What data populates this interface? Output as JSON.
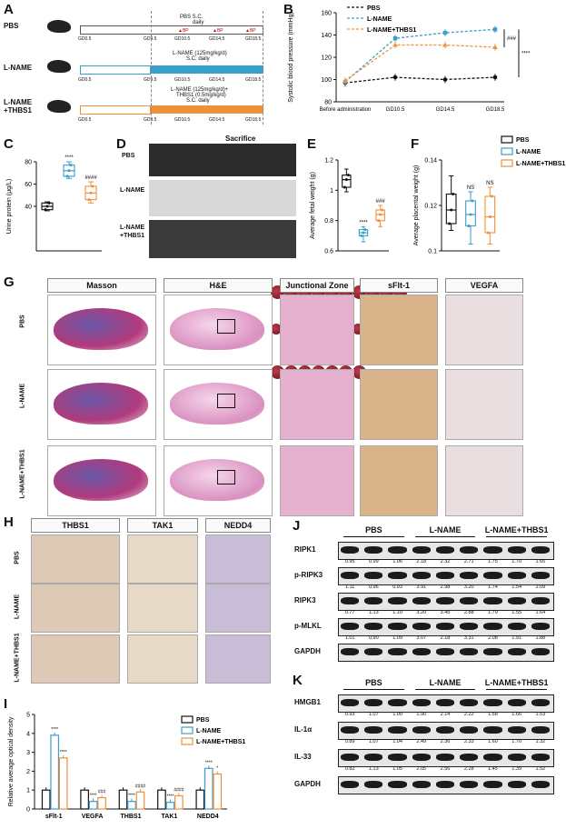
{
  "panels": {
    "A": "A",
    "B": "B",
    "C": "C",
    "D": "D",
    "E": "E",
    "F": "F",
    "G": "G",
    "H": "H",
    "I": "I",
    "J": "J",
    "K": "K"
  },
  "panelA": {
    "groups": [
      {
        "name": "PBS",
        "bar": "PBS S.C.",
        "bar2": "daily"
      },
      {
        "name": "L-NAME",
        "bar": "L-NAME (125mg/kg/d)",
        "bar2": "S.C. daily"
      },
      {
        "name": "L-NAME\n+THBS1",
        "bar": "L-NAME (125mg/kg/d)+",
        "bar2": "THBS1 (0.5mg/kg/d)",
        "bar3": "S.C. daily"
      }
    ],
    "timepoints": [
      "GD0.5",
      "GD9.5",
      "GD10.5",
      "GD14.5",
      "GD18.5"
    ],
    "bp": "▲BP"
  },
  "chart_data": [
    {
      "id": "B",
      "type": "line",
      "ylabel": "Systolic blood pressure (mmHg)",
      "categories": [
        "Before administration",
        "GD10.5",
        "GD14.5",
        "GD18.5"
      ],
      "ylim": [
        80,
        160
      ],
      "yticks": [
        80,
        100,
        120,
        140,
        160
      ],
      "series": [
        {
          "name": "PBS",
          "values": [
            97,
            102,
            100,
            102
          ],
          "color": "#111111"
        },
        {
          "name": "L-NAME",
          "values": [
            98,
            137,
            142,
            145
          ],
          "color": "#3a9fc8"
        },
        {
          "name": "L-NAME+THBS1",
          "values": [
            99,
            131,
            131,
            129
          ],
          "color": "#f0903a"
        }
      ],
      "annotations": [
        "###",
        "****"
      ]
    },
    {
      "id": "C",
      "type": "box",
      "ylabel": "Urine protein (μg/L)",
      "ylim": [
        0,
        80
      ],
      "yticks": [
        40,
        60,
        80
      ],
      "series": [
        {
          "name": "PBS",
          "median": 40,
          "q1": 37,
          "q3": 43,
          "min": 36,
          "max": 44,
          "color": "#111111",
          "mark": ""
        },
        {
          "name": "L-NAME",
          "median": 72,
          "q1": 67,
          "q3": 77,
          "min": 65,
          "max": 80,
          "color": "#3a9fc8",
          "mark": "****"
        },
        {
          "name": "L-NAME+THBS1",
          "median": 52,
          "q1": 46,
          "q3": 58,
          "min": 43,
          "max": 62,
          "color": "#f0903a",
          "mark": "####"
        }
      ]
    },
    {
      "id": "E",
      "type": "box",
      "ylabel": "Average fetal weight (g)",
      "ylim": [
        0.6,
        1.2
      ],
      "yticks": [
        0.6,
        0.8,
        1.0,
        1.2
      ],
      "series": [
        {
          "name": "PBS",
          "median": 1.07,
          "q1": 1.02,
          "q3": 1.1,
          "min": 0.99,
          "max": 1.14,
          "color": "#111111",
          "mark": ""
        },
        {
          "name": "L-NAME",
          "median": 0.72,
          "q1": 0.7,
          "q3": 0.74,
          "min": 0.66,
          "max": 0.76,
          "color": "#3a9fc8",
          "mark": "****"
        },
        {
          "name": "L-NAME+THBS1",
          "median": 0.84,
          "q1": 0.8,
          "q3": 0.87,
          "min": 0.76,
          "max": 0.9,
          "color": "#f0903a",
          "mark": "###"
        }
      ]
    },
    {
      "id": "F",
      "type": "box",
      "ylabel": "Average placental weight (g)",
      "ylim": [
        0.1,
        0.14
      ],
      "yticks": [
        0.1,
        0.12,
        0.14
      ],
      "series": [
        {
          "name": "PBS",
          "median": 0.118,
          "q1": 0.112,
          "q3": 0.125,
          "min": 0.109,
          "max": 0.133,
          "color": "#111111",
          "mark": ""
        },
        {
          "name": "L-NAME",
          "median": 0.116,
          "q1": 0.111,
          "q3": 0.122,
          "min": 0.103,
          "max": 0.126,
          "color": "#3a9fc8",
          "mark": "NS"
        },
        {
          "name": "L-NAME+THBS1",
          "median": 0.115,
          "q1": 0.108,
          "q3": 0.124,
          "min": 0.103,
          "max": 0.128,
          "color": "#f0903a",
          "mark": "NS"
        }
      ]
    },
    {
      "id": "I",
      "type": "bar",
      "ylabel": "Relative average optical density",
      "categories": [
        "sFlt-1",
        "VEGFA",
        "THBS1",
        "TAK1",
        "NEDD4"
      ],
      "ylim": [
        0,
        5
      ],
      "yticks": [
        0,
        1,
        2,
        3,
        4,
        5
      ],
      "series": [
        {
          "name": "PBS",
          "values": [
            1.0,
            1.0,
            1.0,
            1.0,
            1.0
          ],
          "color": "#111111"
        },
        {
          "name": "L-NAME",
          "values": [
            3.9,
            0.4,
            0.4,
            0.35,
            2.15
          ],
          "color": "#3a9fc8"
        },
        {
          "name": "L-NAME+THBS1",
          "values": [
            2.7,
            0.6,
            0.9,
            0.7,
            1.85
          ],
          "color": "#f0903a"
        }
      ],
      "marks": [
        [
          "",
          "****",
          "****"
        ],
        [
          "",
          "****",
          "###"
        ],
        [
          "",
          "****",
          "####"
        ],
        [
          "",
          "****",
          "####"
        ],
        [
          "",
          "****",
          "*"
        ]
      ]
    }
  ],
  "legendBF": [
    "PBS",
    "L-NAME",
    "L-NAME+THBS1"
  ],
  "panelD": {
    "title": "Sacrifice",
    "rows": [
      "PBS",
      "L-NAME",
      "L-NAME\n+THBS1"
    ]
  },
  "panelG": {
    "headers": [
      "Masson",
      "H&E",
      "Junctional Zone",
      "sFlt-1",
      "VEGFA"
    ],
    "rows": [
      "PBS",
      "L-NAME",
      "L-NAME+THBS1"
    ]
  },
  "panelH": {
    "headers": [
      "THBS1",
      "TAK1",
      "NEDD4"
    ],
    "rows": [
      "PBS",
      "L-NAME",
      "L-NAME+THBS1"
    ]
  },
  "panelJ": {
    "groups": [
      "PBS",
      "L-NAME",
      "L-NAME+THBS1"
    ],
    "blots": [
      {
        "name": "RIPK1",
        "q": [
          "0.95",
          "0.99",
          "1.06",
          "2.18",
          "2.32",
          "2.71",
          "1.75",
          "1.70",
          "1.65"
        ]
      },
      {
        "name": "p-RIPK3",
        "q": [
          "1.11",
          "0.96",
          "0.93",
          "3.91",
          "2.98",
          "3.20",
          "1.74",
          "1.54",
          "2.09"
        ]
      },
      {
        "name": "RIPK3",
        "q": [
          "0.77",
          "1.13",
          "1.10",
          "3.20",
          "3.45",
          "2.88",
          "1.79",
          "1.55",
          "1.64"
        ]
      },
      {
        "name": "p-MLKL",
        "q": [
          "1.01",
          "0.90",
          "1.09",
          "3.07",
          "2.18",
          "3.31",
          "2.08",
          "1.91",
          "1.88"
        ]
      },
      {
        "name": "GAPDH",
        "q": []
      }
    ]
  },
  "panelK": {
    "groups": [
      "PBS",
      "L-NAME",
      "L-NAME+THBS1"
    ],
    "blots": [
      {
        "name": "HMGB1",
        "q": [
          "0.93",
          "1.07",
          "1.00",
          "1.90",
          "2.14",
          "2.22",
          "1.58",
          "1.66",
          "1.53"
        ]
      },
      {
        "name": "IL-1α",
        "q": [
          "0.89",
          "1.07",
          "1.04",
          "2.49",
          "2.36",
          "2.33",
          "1.60",
          "1.70",
          "1.32"
        ]
      },
      {
        "name": "IL-33",
        "q": [
          "0.82",
          "1.13",
          "1.05",
          "2.05",
          "2.56",
          "2.28",
          "1.45",
          "1.39",
          "1.52"
        ]
      },
      {
        "name": "GAPDH",
        "q": []
      }
    ]
  }
}
